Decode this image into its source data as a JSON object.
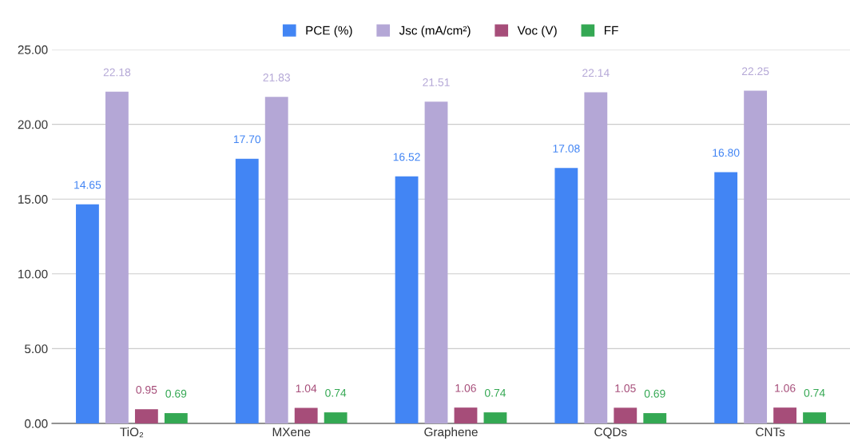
{
  "chart_data": {
    "type": "bar",
    "categories": [
      "TiO₂",
      "MXene",
      "Graphene",
      "CQDs",
      "CNTs"
    ],
    "series": [
      {
        "name": "PCE (%)",
        "color": "#4285f4",
        "values": [
          14.65,
          17.7,
          16.52,
          17.08,
          16.8
        ],
        "value_labels": [
          "14.65",
          "17.70",
          "16.52",
          "17.08",
          "16.80"
        ]
      },
      {
        "name": "Jsc (mA/cm²)",
        "color": "#b4a7d6",
        "values": [
          22.18,
          21.83,
          21.51,
          22.14,
          22.25
        ],
        "value_labels": [
          "22.18",
          "21.83",
          "21.51",
          "22.14",
          "22.25"
        ]
      },
      {
        "name": "Voc (V)",
        "color": "#a64d79",
        "values": [
          0.95,
          1.04,
          1.06,
          1.05,
          1.06
        ],
        "value_labels": [
          "0.95",
          "1.04",
          "1.06",
          "1.05",
          "1.06"
        ]
      },
      {
        "name": "FF",
        "color": "#34a853",
        "values": [
          0.69,
          0.74,
          0.74,
          0.69,
          0.74
        ],
        "value_labels": [
          "0.69",
          "0.74",
          "0.74",
          "0.69",
          "0.74"
        ]
      }
    ],
    "ylim": [
      0,
      25
    ],
    "yticks": [
      {
        "value": 0,
        "label": "0.00"
      },
      {
        "value": 5,
        "label": "5.00"
      },
      {
        "value": 10,
        "label": "10.00"
      },
      {
        "value": 15,
        "label": "15.00"
      },
      {
        "value": 20,
        "label": "20.00"
      },
      {
        "value": 25,
        "label": "25.00"
      }
    ],
    "grid": "y",
    "legend": "top"
  }
}
